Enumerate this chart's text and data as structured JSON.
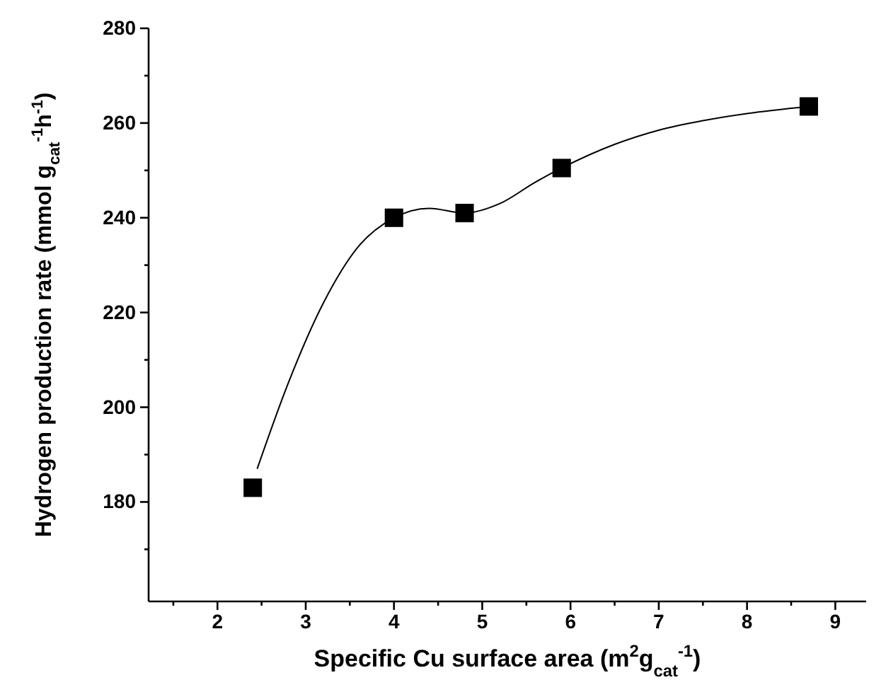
{
  "chart_data": {
    "type": "scatter",
    "xlabel": "Specific Cu surface area (m$^{2}$g$_{cat}$$^{-1}$)",
    "ylabel": "Hydrogen production rate (mmol g$_{cat}$$^{-1}$h$^{-1}$)",
    "xlim": [
      1.22,
      9.35
    ],
    "ylim": [
      159,
      280
    ],
    "xticks": [
      {
        "value": 1.5,
        "label": null
      },
      2,
      {
        "value": 2.5,
        "label": null
      },
      3,
      {
        "value": 3.5,
        "label": null
      },
      4,
      {
        "value": 4.5,
        "label": null
      },
      5,
      {
        "value": 5.5,
        "label": null
      },
      6,
      {
        "value": 6.5,
        "label": null
      },
      7,
      {
        "value": 7.5,
        "label": null
      },
      8,
      {
        "value": 8.5,
        "label": null
      },
      9
    ],
    "yticks": [
      {
        "value": 170,
        "label": null
      },
      180,
      {
        "value": 190,
        "label": null
      },
      200,
      {
        "value": 210,
        "label": null
      },
      220,
      {
        "value": 230,
        "label": null
      },
      240,
      {
        "value": 250,
        "label": null
      },
      260,
      {
        "value": 270,
        "label": null
      },
      280
    ],
    "grid": false,
    "series": [
      {
        "type": "line",
        "color": "#000000",
        "marker": "none",
        "line_style": "solid",
        "x": [
          2.45,
          2.8,
          3.2,
          3.6,
          4.0,
          4.4,
          4.8,
          5.2,
          5.6,
          5.9,
          6.5,
          7.0,
          7.5,
          8.0,
          8.7
        ],
        "values": [
          187,
          205,
          222,
          234,
          240,
          242,
          241,
          243,
          247.5,
          250.5,
          255.5,
          258.5,
          260.5,
          262,
          263.5
        ]
      },
      {
        "color": "#000000",
        "marker": "square",
        "x": [
          2.4,
          4.0,
          4.8,
          5.9,
          8.7
        ],
        "values": [
          183,
          240,
          241,
          250.5,
          263.5
        ]
      }
    ]
  }
}
